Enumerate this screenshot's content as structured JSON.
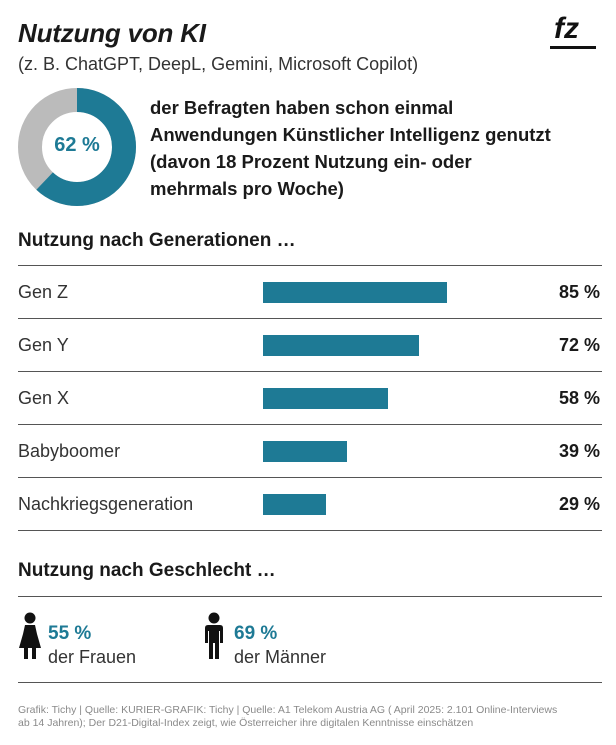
{
  "header": {
    "title": "Nutzung von KI",
    "subtitle": "(z. B. ChatGPT, DeepL, Gemini, Microsoft Copilot)",
    "logo_text": "fz"
  },
  "colors": {
    "accent": "#1e7a95",
    "donut_rest": "#bbbbbb",
    "rule": "#555555",
    "footer": "#8a8a8a"
  },
  "summary": {
    "percent_label": "62 %",
    "percent_value": 62,
    "headline_lines": [
      "der Befragten haben schon einmal",
      "Anwendungen Künstlicher Intelligenz genutzt",
      "(davon 18 Prozent Nutzung ein- oder",
      "mehrmals pro Woche)"
    ]
  },
  "generations": {
    "section_title": "Nutzung nach Generationen …"
  },
  "gender": {
    "section_title": "Nutzung nach Geschlecht …",
    "items": [
      {
        "value_label": "55 %",
        "value": 55,
        "text": "der Frauen",
        "icon": "woman-icon"
      },
      {
        "value_label": "69 %",
        "value": 69,
        "text": "der Männer",
        "icon": "man-icon"
      }
    ]
  },
  "chart_data": {
    "type": "bar",
    "orientation": "horizontal",
    "title": "Nutzung nach Generationen …",
    "categories": [
      "Gen Z",
      "Gen Y",
      "Gen X",
      "Babyboomer",
      "Nachkriegsgeneration"
    ],
    "values": [
      85,
      72,
      58,
      39,
      29
    ],
    "value_labels": [
      "85 %",
      "72 %",
      "58 %",
      "39 %",
      "29 %"
    ],
    "unit": "%",
    "xlim": [
      0,
      100
    ],
    "grid": false,
    "legend": "none"
  },
  "footer": {
    "lines": [
      "Grafik: Tichy | Quelle: KURIER-GRAFIK: Tichy | Quelle: A1 Telekom Austria AG ( April 2025: 2.101 Online-Interviews",
      "ab 14 Jahren); Der D21-Digital-Index zeigt, wie Österreicher ihre digitalen Kenntnisse einschätzen"
    ]
  }
}
